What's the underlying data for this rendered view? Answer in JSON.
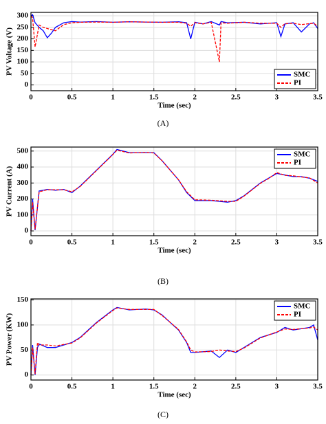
{
  "chart_data": [
    {
      "type": "line",
      "caption": "(A)",
      "y_label": "PV Voltage (V)",
      "x_label": "Time (sec)",
      "x": [
        0,
        0.02,
        0.05,
        0.1,
        0.15,
        0.2,
        0.25,
        0.3,
        0.4,
        0.5,
        0.6,
        0.8,
        1.0,
        1.2,
        1.4,
        1.6,
        1.8,
        1.9,
        1.95,
        2.0,
        2.1,
        2.2,
        2.3,
        2.32,
        2.4,
        2.6,
        2.8,
        3.0,
        3.05,
        3.1,
        3.2,
        3.3,
        3.4,
        3.45,
        3.5
      ],
      "series": [
        {
          "name": "SMC",
          "color": "#0000ff",
          "values": [
            300,
            305,
            270,
            250,
            235,
            205,
            225,
            250,
            270,
            275,
            273,
            275,
            272,
            274,
            273,
            272,
            274,
            270,
            200,
            272,
            265,
            275,
            260,
            275,
            270,
            272,
            265,
            270,
            210,
            265,
            270,
            230,
            265,
            270,
            245
          ]
        },
        {
          "name": "PI",
          "color": "#ff0000",
          "dashed": true,
          "values": [
            300,
            290,
            165,
            260,
            250,
            245,
            240,
            235,
            262,
            270,
            272,
            273,
            272,
            274,
            273,
            272,
            272,
            268,
            255,
            270,
            265,
            272,
            100,
            270,
            268,
            272,
            268,
            268,
            250,
            266,
            268,
            262,
            266,
            268,
            255
          ]
        }
      ],
      "xlim": [
        0,
        3.5
      ],
      "xticks": [
        0,
        0.5,
        1,
        1.5,
        2,
        2.5,
        3,
        3.5
      ],
      "ylim": [
        -25,
        315
      ],
      "yticks": [
        0,
        50,
        100,
        150,
        200,
        250,
        300
      ],
      "grid": true,
      "legend": "lower right"
    },
    {
      "type": "line",
      "caption": "(B)",
      "y_label": "PV Current (A)",
      "x_label": "Time (sec)",
      "x": [
        0,
        0.02,
        0.05,
        0.1,
        0.2,
        0.3,
        0.4,
        0.5,
        0.6,
        0.8,
        1.0,
        1.05,
        1.2,
        1.4,
        1.5,
        1.6,
        1.8,
        1.9,
        2.0,
        2.2,
        2.4,
        2.5,
        2.6,
        2.8,
        2.9,
        3.0,
        3.1,
        3.2,
        3.3,
        3.4,
        3.5
      ],
      "series": [
        {
          "name": "SMC",
          "color": "#0000ff",
          "values": [
            0,
            200,
            5,
            250,
            260,
            255,
            260,
            240,
            280,
            380,
            480,
            510,
            490,
            490,
            490,
            440,
            320,
            240,
            190,
            190,
            180,
            190,
            220,
            300,
            330,
            360,
            350,
            340,
            340,
            330,
            310
          ]
        },
        {
          "name": "PI",
          "color": "#ff0000",
          "dashed": true,
          "values": [
            0,
            180,
            10,
            245,
            258,
            258,
            258,
            245,
            278,
            378,
            478,
            505,
            488,
            492,
            488,
            440,
            320,
            245,
            195,
            192,
            185,
            185,
            218,
            298,
            328,
            365,
            348,
            345,
            338,
            332,
            300
          ]
        }
      ],
      "xlim": [
        0,
        3.5
      ],
      "xticks": [
        0,
        0.5,
        1,
        1.5,
        2,
        2.5,
        3,
        3.5
      ],
      "ylim": [
        -30,
        525
      ],
      "yticks": [
        0,
        100,
        200,
        300,
        400,
        500
      ],
      "grid": true,
      "legend": "upper right"
    },
    {
      "type": "line",
      "caption": "(C)",
      "y_label": "PV Power (KW)",
      "x_label": "Time (sec)",
      "x": [
        0,
        0.02,
        0.05,
        0.08,
        0.1,
        0.2,
        0.3,
        0.5,
        0.6,
        0.8,
        1.0,
        1.05,
        1.2,
        1.4,
        1.5,
        1.6,
        1.8,
        1.9,
        1.95,
        2.0,
        2.2,
        2.3,
        2.4,
        2.5,
        2.6,
        2.8,
        3.0,
        3.1,
        3.2,
        3.4,
        3.45,
        3.5
      ],
      "series": [
        {
          "name": "SMC",
          "color": "#0000ff",
          "values": [
            0,
            60,
            0,
            55,
            62,
            55,
            55,
            65,
            75,
            105,
            130,
            135,
            130,
            132,
            130,
            120,
            90,
            65,
            45,
            45,
            48,
            35,
            50,
            45,
            55,
            75,
            85,
            95,
            90,
            95,
            100,
            70
          ]
        },
        {
          "name": "PI",
          "color": "#ff0000",
          "dashed": true,
          "values": [
            0,
            55,
            2,
            65,
            60,
            60,
            58,
            64,
            74,
            104,
            129,
            134,
            131,
            131,
            131,
            119,
            91,
            66,
            50,
            46,
            47,
            50,
            48,
            47,
            54,
            74,
            86,
            92,
            91,
            94,
            96,
            90
          ]
        }
      ],
      "xlim": [
        0,
        3.5
      ],
      "xticks": [
        0,
        0.5,
        1,
        1.5,
        2,
        2.5,
        3,
        3.5
      ],
      "ylim": [
        -10,
        152
      ],
      "yticks": [
        0,
        50,
        100,
        150
      ],
      "grid": true,
      "legend": "upper right"
    }
  ]
}
